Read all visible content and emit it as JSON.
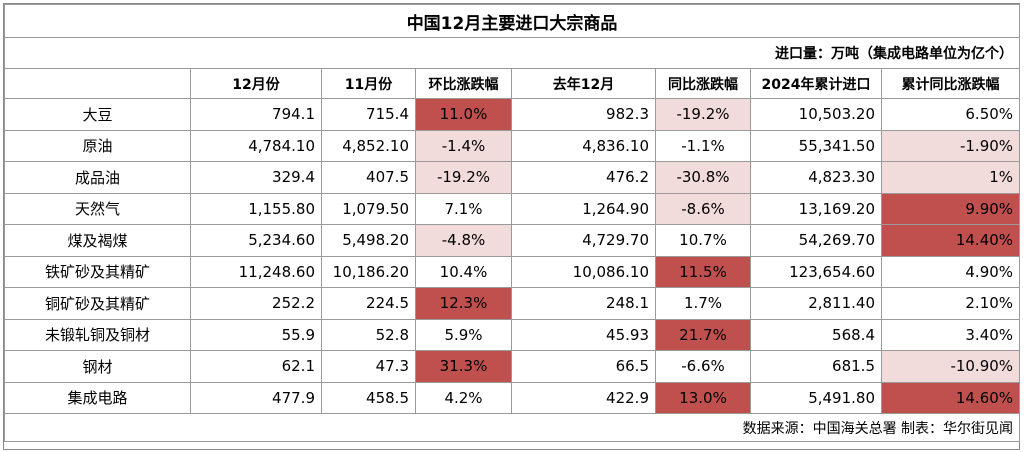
{
  "title": "中国12月主要进口大宗商品",
  "unit_note": "进口量：万吨（集成电路单位为亿个）",
  "headers": [
    "",
    "12月份",
    "11月份",
    "环比涨跌幅",
    "去年12月",
    "同比涨跌幅",
    "2024年累计进口",
    "累计同比涨跌幅"
  ],
  "colors": {
    "highlight_dark": "#c0504d",
    "highlight_light": "#f2dcdb",
    "grid": "#9a9a9a"
  },
  "rows": [
    {
      "name": "大豆",
      "dec": "794.1",
      "nov": "715.4",
      "mom": "11.0%",
      "last_dec": "982.3",
      "yoy": "-19.2%",
      "ytd": "10,503.20",
      "ytd_yoy": "6.50%",
      "mom_hl": "dark",
      "yoy_hl": "light",
      "ytd_yoy_hl": ""
    },
    {
      "name": "原油",
      "dec": "4,784.10",
      "nov": "4,852.10",
      "mom": "-1.4%",
      "last_dec": "4,836.10",
      "yoy": "-1.1%",
      "ytd": "55,341.50",
      "ytd_yoy": "-1.90%",
      "mom_hl": "light",
      "yoy_hl": "",
      "ytd_yoy_hl": "light"
    },
    {
      "name": "成品油",
      "dec": "329.4",
      "nov": "407.5",
      "mom": "-19.2%",
      "last_dec": "476.2",
      "yoy": "-30.8%",
      "ytd": "4,823.30",
      "ytd_yoy": "1%",
      "mom_hl": "light",
      "yoy_hl": "light",
      "ytd_yoy_hl": "light"
    },
    {
      "name": "天然气",
      "dec": "1,155.80",
      "nov": "1,079.50",
      "mom": "7.1%",
      "last_dec": "1,264.90",
      "yoy": "-8.6%",
      "ytd": "13,169.20",
      "ytd_yoy": "9.90%",
      "mom_hl": "",
      "yoy_hl": "light",
      "ytd_yoy_hl": "dark"
    },
    {
      "name": "煤及褐煤",
      "dec": "5,234.60",
      "nov": "5,498.20",
      "mom": "-4.8%",
      "last_dec": "4,729.70",
      "yoy": "10.7%",
      "ytd": "54,269.70",
      "ytd_yoy": "14.40%",
      "mom_hl": "light",
      "yoy_hl": "",
      "ytd_yoy_hl": "dark"
    },
    {
      "name": "铁矿砂及其精矿",
      "dec": "11,248.60",
      "nov": "10,186.20",
      "mom": "10.4%",
      "last_dec": "10,086.10",
      "yoy": "11.5%",
      "ytd": "123,654.60",
      "ytd_yoy": "4.90%",
      "mom_hl": "",
      "yoy_hl": "dark",
      "ytd_yoy_hl": ""
    },
    {
      "name": "铜矿砂及其精矿",
      "dec": "252.2",
      "nov": "224.5",
      "mom": "12.3%",
      "last_dec": "248.1",
      "yoy": "1.7%",
      "ytd": "2,811.40",
      "ytd_yoy": "2.10%",
      "mom_hl": "dark",
      "yoy_hl": "",
      "ytd_yoy_hl": ""
    },
    {
      "name": "未锻轧铜及铜材",
      "dec": "55.9",
      "nov": "52.8",
      "mom": "5.9%",
      "last_dec": "45.93",
      "yoy": "21.7%",
      "ytd": "568.4",
      "ytd_yoy": "3.40%",
      "mom_hl": "",
      "yoy_hl": "dark",
      "ytd_yoy_hl": ""
    },
    {
      "name": "钢材",
      "dec": "62.1",
      "nov": "47.3",
      "mom": "31.3%",
      "last_dec": "66.5",
      "yoy": "-6.6%",
      "ytd": "681.5",
      "ytd_yoy": "-10.90%",
      "mom_hl": "dark",
      "yoy_hl": "",
      "ytd_yoy_hl": "light"
    },
    {
      "name": "集成电路",
      "dec": "477.9",
      "nov": "458.5",
      "mom": "4.2%",
      "last_dec": "422.9",
      "yoy": "13.0%",
      "ytd": "5,491.80",
      "ytd_yoy": "14.60%",
      "mom_hl": "",
      "yoy_hl": "dark",
      "ytd_yoy_hl": "dark"
    }
  ],
  "footer": "数据来源：中国海关总署  制表：华尔街见闻"
}
